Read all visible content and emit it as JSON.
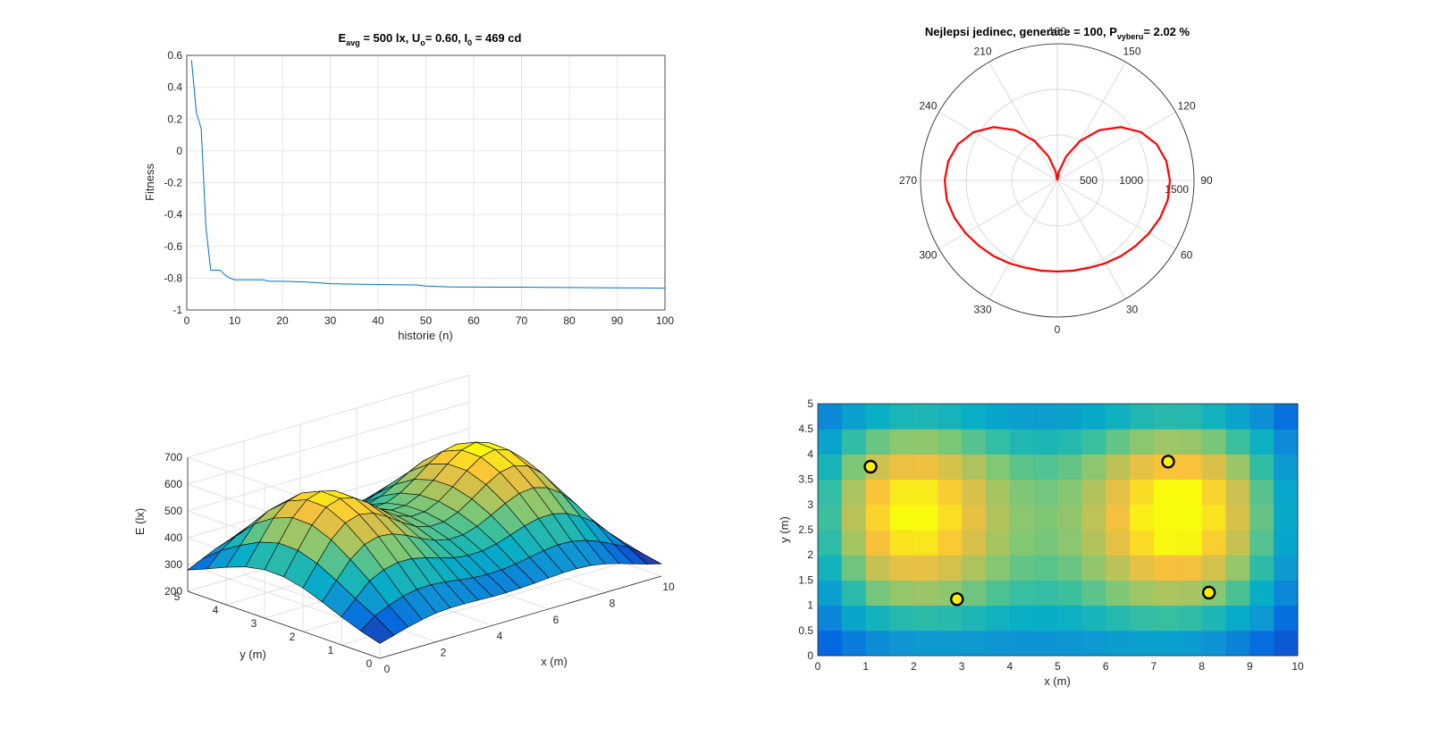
{
  "figure": {
    "fitness_title": {
      "prefix": "E",
      "sub1": "avg",
      "mid1": " = 500 lx, U",
      "sub2": "o",
      "mid2": "= 0.60, I",
      "sub3": "0",
      "end": " = 469 cd"
    },
    "polar_title": {
      "main": "Nejlepsi jedinec, generace = 100, P",
      "sub": "vyberu",
      "end": "= 2.02 %"
    }
  },
  "chart_data": [
    {
      "type": "line",
      "xlabel": "historie (n)",
      "ylabel": "Fitness",
      "xlim": [
        0,
        100
      ],
      "ylim": [
        -1,
        0.6
      ],
      "xticks": [
        "0",
        "10",
        "20",
        "30",
        "40",
        "50",
        "60",
        "70",
        "80",
        "90",
        "100"
      ],
      "yticks": [
        "-1",
        "-0.8",
        "-0.6",
        "-0.4",
        "-0.2",
        "0",
        "0.2",
        "0.4",
        "0.6"
      ],
      "grid": true,
      "color": "#0072BD",
      "x": [
        1,
        2,
        3,
        4,
        5,
        6,
        7,
        8,
        9,
        10,
        12,
        14,
        16,
        17,
        20,
        25,
        28,
        30,
        35,
        40,
        45,
        48,
        50,
        55,
        60,
        65,
        70,
        75,
        80,
        85,
        90,
        95,
        100
      ],
      "y": [
        0.57,
        0.24,
        0.14,
        -0.48,
        -0.75,
        -0.75,
        -0.75,
        -0.78,
        -0.8,
        -0.81,
        -0.81,
        -0.81,
        -0.81,
        -0.82,
        -0.82,
        -0.825,
        -0.83,
        -0.835,
        -0.838,
        -0.84,
        -0.842,
        -0.843,
        -0.85,
        -0.855,
        -0.856,
        -0.857,
        -0.857,
        -0.858,
        -0.859,
        -0.86,
        -0.861,
        -0.862,
        -0.863
      ]
    },
    {
      "type": "polar",
      "angle_ticks": [
        "0",
        "30",
        "60",
        "90",
        "120",
        "150",
        "180",
        "210",
        "240",
        "270",
        "300",
        "330"
      ],
      "radial_ticks": [
        "500",
        "1000",
        "1500"
      ],
      "rmax": 1500,
      "color": "#ff0000",
      "theta_deg": [
        0,
        10,
        20,
        30,
        40,
        50,
        60,
        70,
        80,
        90,
        100,
        110,
        120,
        130,
        140,
        150,
        160,
        170,
        180
      ],
      "r": [
        1000,
        1005,
        1020,
        1050,
        1085,
        1120,
        1160,
        1200,
        1230,
        1235,
        1215,
        1160,
        1060,
        910,
        720,
        500,
        280,
        95,
        0
      ],
      "symmetric": true
    },
    {
      "type": "surface",
      "xlabel": "x (m)",
      "ylabel": "y (m)",
      "zlabel": "E (lx)",
      "xticks": [
        "0",
        "2",
        "4",
        "6",
        "8",
        "10"
      ],
      "yticks": [
        "0",
        "1",
        "2",
        "3",
        "4",
        "5"
      ],
      "zticks": [
        "200",
        "300",
        "400",
        "500",
        "600",
        "700"
      ],
      "zlim": [
        200,
        700
      ]
    },
    {
      "type": "heatmap",
      "xlabel": "x (m)",
      "ylabel": "y (m)",
      "xlim": [
        0,
        10
      ],
      "ylim": [
        0,
        5
      ],
      "xticks": [
        "0",
        "1",
        "2",
        "3",
        "4",
        "5",
        "6",
        "7",
        "8",
        "9",
        "10"
      ],
      "yticks": [
        "0",
        "0.5",
        "1",
        "1.5",
        "2",
        "2.5",
        "3",
        "3.5",
        "4",
        "4.5",
        "5"
      ],
      "luminaires": [
        {
          "x": 1.1,
          "y": 3.75
        },
        {
          "x": 2.9,
          "y": 1.12
        },
        {
          "x": 7.3,
          "y": 3.85
        },
        {
          "x": 8.15,
          "y": 1.25
        }
      ],
      "marker_color": "#ffee00"
    }
  ]
}
